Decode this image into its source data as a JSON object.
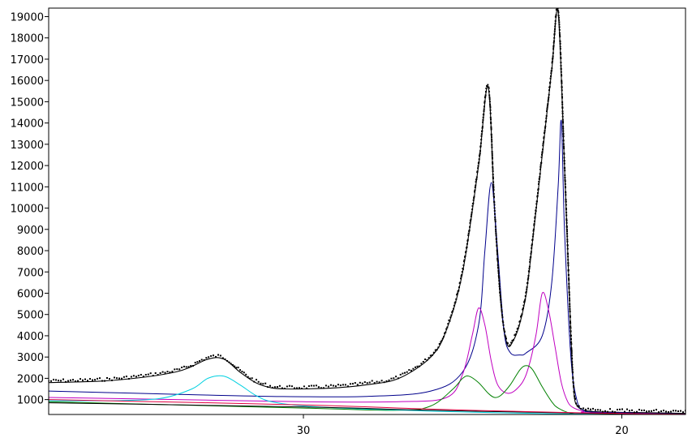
{
  "chart_data": {
    "type": "line",
    "title": "",
    "xlabel": "",
    "ylabel": "",
    "x_reversed": true,
    "xlim": [
      38,
      18
    ],
    "ylim": [
      300,
      19400
    ],
    "x_ticks": [
      30,
      20
    ],
    "x_tick_labels": [
      "30",
      "20"
    ],
    "y_ticks": [
      1000,
      2000,
      3000,
      4000,
      5000,
      6000,
      7000,
      8000,
      9000,
      10000,
      11000,
      12000,
      13000,
      14000,
      15000,
      16000,
      17000,
      18000,
      19000
    ],
    "y_tick_labels": [
      "1000",
      "2000",
      "3000",
      "4000",
      "5000",
      "6000",
      "7000",
      "8000",
      "9000",
      "10000",
      "11000",
      "12000",
      "13000",
      "14000",
      "15000",
      "16000",
      "17000",
      "18000",
      "19000"
    ],
    "grid": false,
    "legend": "none",
    "series": [
      {
        "color": "#000000",
        "role": "observed-points",
        "x": [
          38,
          36,
          34,
          33,
          32.5,
          32,
          31.5,
          31,
          30.5,
          30,
          29,
          28,
          27,
          26,
          25.5,
          25,
          24.5,
          24.2,
          24,
          23.8,
          23.6,
          23.4,
          23.2,
          23,
          22.8,
          22.5,
          22.2,
          22,
          21.8,
          21.6,
          21.5,
          21.4,
          21.2,
          21,
          20.8,
          20.5,
          20,
          19,
          18
        ],
        "y": [
          1800,
          1900,
          2300,
          2900,
          2900,
          2300,
          1800,
          1550,
          1500,
          1500,
          1550,
          1700,
          2000,
          3000,
          4300,
          7000,
          12000,
          15700,
          10000,
          5500,
          3600,
          3800,
          4600,
          6000,
          8500,
          12500,
          16500,
          19200,
          12000,
          4000,
          1300,
          700,
          500,
          460,
          430,
          420,
          400,
          380,
          350
        ]
      },
      {
        "color": "#000000",
        "role": "fit-total",
        "x": [
          38,
          36,
          34,
          33,
          32.5,
          32,
          31.5,
          31,
          30.5,
          30,
          29,
          28,
          27,
          26,
          25.5,
          25,
          24.5,
          24.2,
          24,
          23.8,
          23.6,
          23.4,
          23.2,
          23,
          22.8,
          22.5,
          22.2,
          22,
          21.8,
          21.6,
          21.5,
          21.4,
          21.2,
          21,
          20.8,
          20.5,
          20,
          19,
          18
        ],
        "y": [
          1800,
          1900,
          2300,
          2900,
          2900,
          2300,
          1800,
          1550,
          1500,
          1500,
          1550,
          1700,
          2000,
          3000,
          4300,
          7000,
          12000,
          15700,
          10000,
          5500,
          3600,
          3800,
          4600,
          6000,
          8500,
          12500,
          16500,
          19200,
          12000,
          4000,
          1300,
          700,
          500,
          460,
          430,
          420,
          400,
          380,
          350
        ]
      },
      {
        "color": "#00008b",
        "role": "fit-peak-1",
        "x": [
          38,
          34,
          31,
          28,
          26,
          25,
          24.5,
          24.3,
          24.1,
          23.9,
          23.7,
          23.5,
          23.2,
          23,
          22.5,
          22.2,
          22.0,
          21.9,
          21.8,
          21.6,
          21.4,
          21.2,
          21,
          20,
          18
        ],
        "y": [
          1400,
          1250,
          1150,
          1150,
          1400,
          2300,
          4500,
          8000,
          11200,
          8000,
          4200,
          3200,
          3100,
          3200,
          4000,
          6500,
          11000,
          14100,
          9000,
          3000,
          900,
          500,
          420,
          380,
          320
        ]
      },
      {
        "color": "#c000c0",
        "role": "fit-peak-2",
        "x": [
          38,
          34,
          30,
          27,
          25.5,
          25,
          24.7,
          24.5,
          24.3,
          24.1,
          23.9,
          23.6,
          23.3,
          23,
          22.7,
          22.5,
          22.3,
          22.1,
          21.9,
          21.7,
          21.5,
          21.2,
          21,
          18
        ],
        "y": [
          1100,
          1000,
          900,
          900,
          1100,
          2200,
          4000,
          5300,
          4500,
          2800,
          1700,
          1300,
          1500,
          2200,
          4000,
          6000,
          5200,
          3500,
          1800,
          900,
          600,
          450,
          380,
          300
        ]
      },
      {
        "color": "#008000",
        "role": "fit-peak-3",
        "x": [
          38,
          30,
          27,
          26,
          25.3,
          25,
          24.8,
          24.5,
          24.2,
          24,
          23.8,
          23.5,
          23.2,
          23,
          22.8,
          22.5,
          22.2,
          22,
          21.6,
          21.2,
          20.5,
          18
        ],
        "y": [
          900,
          600,
          500,
          700,
          1500,
          2000,
          2100,
          1800,
          1300,
          1100,
          1200,
          1700,
          2400,
          2600,
          2400,
          1600,
          900,
          600,
          350,
          300,
          280,
          250
        ]
      },
      {
        "color": "#00d0e0",
        "role": "fit-peak-4",
        "x": [
          38,
          36,
          34.5,
          33.5,
          33,
          32.5,
          32,
          31.5,
          31,
          30,
          28,
          25,
          22,
          18
        ],
        "y": [
          950,
          950,
          1050,
          1500,
          2000,
          2100,
          1700,
          1200,
          900,
          700,
          550,
          420,
          330,
          280
        ]
      },
      {
        "color": "#000000",
        "role": "background",
        "x": [
          38,
          30,
          26,
          22,
          20,
          18
        ],
        "y": [
          850,
          650,
          500,
          380,
          330,
          300
        ]
      },
      {
        "color": "#e00040",
        "role": "background-2",
        "x": [
          38,
          30,
          26,
          22,
          20,
          18
        ],
        "y": [
          1000,
          750,
          550,
          400,
          350,
          310
        ]
      }
    ]
  }
}
